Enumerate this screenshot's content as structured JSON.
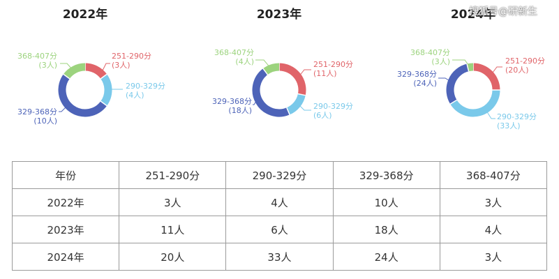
{
  "watermark": "搜狐号@研新生",
  "chart_data": [
    {
      "type": "pie",
      "title": "2022年",
      "categories": [
        "251-290分",
        "290-329分",
        "329-368分",
        "368-407分"
      ],
      "values": [
        3,
        4,
        10,
        3
      ],
      "data_labels": [
        "(3人)",
        "(4人)",
        "(10人)",
        "(3人)"
      ],
      "colors": [
        "#e06469",
        "#7ac9ea",
        "#4d63b8",
        "#9cd37e"
      ]
    },
    {
      "type": "pie",
      "title": "2023年",
      "categories": [
        "251-290分",
        "290-329分",
        "329-368分",
        "368-407分"
      ],
      "values": [
        11,
        6,
        18,
        4
      ],
      "data_labels": [
        "(11人)",
        "(6人)",
        "(18人)",
        "(4人)"
      ],
      "colors": [
        "#e06469",
        "#7ac9ea",
        "#4d63b8",
        "#9cd37e"
      ]
    },
    {
      "type": "pie",
      "title": "2024年",
      "categories": [
        "251-290分",
        "290-329分",
        "329-368分",
        "368-407分"
      ],
      "values": [
        20,
        33,
        24,
        3
      ],
      "data_labels": [
        "(20人)",
        "(33人)",
        "(24人)",
        "(3人)"
      ],
      "colors": [
        "#e06469",
        "#7ac9ea",
        "#4d63b8",
        "#9cd37e"
      ]
    }
  ],
  "table": {
    "headers": [
      "年份",
      "251-290分",
      "290-329分",
      "329-368分",
      "368-407分"
    ],
    "rows": [
      [
        "2022年",
        "3人",
        "4人",
        "10人",
        "3人"
      ],
      [
        "2023年",
        "11人",
        "6人",
        "18人",
        "4人"
      ],
      [
        "2024年",
        "20人",
        "33人",
        "24人",
        "3人"
      ]
    ]
  }
}
